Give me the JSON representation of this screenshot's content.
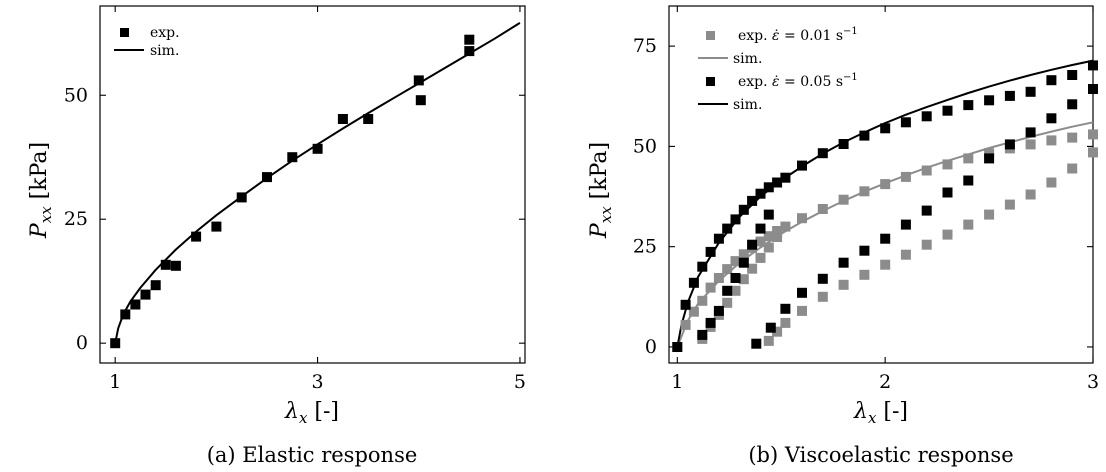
{
  "chart_data": [
    {
      "type": "scatter",
      "caption": "(a) Elastic response",
      "xlabel": "λx [-]",
      "ylabel": "Pxx [kPa]",
      "xlim": [
        0.85,
        5.05
      ],
      "ylim": [
        -4,
        68
      ],
      "xticks": [
        1,
        3,
        5
      ],
      "yticks": [
        0,
        25,
        50
      ],
      "grid": false,
      "legend_position": "top-left",
      "series": [
        {
          "name": "exp.",
          "kind": "markers",
          "color": "#000000",
          "x": [
            1.0,
            1.1,
            1.2,
            1.3,
            1.4,
            1.5,
            1.6,
            1.8,
            2.0,
            2.25,
            2.5,
            2.75,
            3.0,
            3.25,
            3.5,
            4.0,
            4.02,
            4.5,
            4.5
          ],
          "y": [
            0,
            5.8,
            7.8,
            9.8,
            11.7,
            15.8,
            15.6,
            21.5,
            23.5,
            29.4,
            33.5,
            37.5,
            39.2,
            45.2,
            45.2,
            53.0,
            49.0,
            58.9,
            61.2
          ]
        },
        {
          "name": "sim.",
          "kind": "line",
          "color": "#000000",
          "x": [
            1.0,
            1.03,
            1.08,
            1.15,
            1.25,
            1.4,
            1.6,
            1.8,
            2.0,
            2.25,
            2.5,
            2.75,
            3.0,
            3.25,
            3.5,
            3.75,
            4.0,
            4.25,
            4.5,
            4.75,
            5.0
          ],
          "y": [
            0,
            3.0,
            5.8,
            8.4,
            11.2,
            14.8,
            18.9,
            22.5,
            25.8,
            29.6,
            33.3,
            36.8,
            40.1,
            43.3,
            46.4,
            49.4,
            52.4,
            55.4,
            58.4,
            61.4,
            64.6
          ]
        }
      ]
    },
    {
      "type": "scatter",
      "caption": "(b) Viscoelastic response",
      "xlabel": "λx [-]",
      "ylabel": "Pxx [kPa]",
      "xlim": [
        0.96,
        3.0
      ],
      "ylim": [
        -4,
        85
      ],
      "xticks": [
        1,
        2,
        3
      ],
      "yticks": [
        0,
        25,
        50,
        75
      ],
      "grid": false,
      "legend_position": "top-left",
      "series": [
        {
          "name": "exp. ε̇ = 0.01 s⁻¹",
          "kind": "markers",
          "color": "#8c8c8c",
          "x": [
            1.0,
            1.04,
            1.08,
            1.12,
            1.16,
            1.2,
            1.24,
            1.28,
            1.32,
            1.36,
            1.4,
            1.44,
            1.48,
            1.52,
            1.6,
            1.7,
            1.8,
            1.9,
            2.0,
            2.1,
            2.2,
            2.3,
            2.4,
            2.5,
            2.6,
            2.7,
            2.8,
            2.9,
            3.0,
            1.12,
            1.16,
            1.2,
            1.24,
            1.28,
            1.32,
            1.36,
            1.4,
            1.44,
            1.48,
            1.44,
            1.48,
            1.52,
            1.6,
            1.7,
            1.8,
            1.9,
            2.0,
            2.1,
            2.2,
            2.3,
            2.4,
            2.5,
            2.6,
            2.7,
            2.8,
            2.9,
            3.0
          ],
          "y": [
            0,
            5.5,
            8.8,
            11.5,
            14.8,
            17.2,
            19.4,
            21.4,
            23.1,
            24.7,
            26.3,
            27.6,
            28.9,
            30.0,
            32.1,
            34.4,
            36.7,
            38.8,
            40.6,
            42.4,
            44.0,
            45.5,
            47.0,
            48.3,
            49.5,
            50.5,
            51.5,
            52.2,
            53.0,
            2.0,
            5.0,
            8.0,
            11.0,
            14.0,
            16.9,
            19.5,
            22.2,
            24.8,
            27.4,
            1.5,
            3.8,
            6.0,
            9.0,
            12.5,
            15.5,
            18.0,
            20.5,
            23.0,
            25.5,
            28.0,
            30.5,
            33.0,
            35.5,
            38.0,
            41.0,
            44.5,
            48.5
          ],
          "note_y_last": [
            0
          ]
        },
        {
          "name": "sim.",
          "kind": "line",
          "color": "#8c8c8c",
          "x": [
            1.0,
            1.05,
            1.1,
            1.2,
            1.3,
            1.4,
            1.5,
            1.6,
            1.7,
            1.8,
            1.9,
            2.0,
            2.1,
            2.2,
            2.3,
            2.4,
            2.5,
            2.6,
            2.7,
            2.8,
            2.9,
            3.0
          ],
          "y": [
            0,
            6.5,
            10.8,
            16.5,
            21.0,
            24.8,
            28.2,
            31.2,
            33.9,
            36.4,
            38.7,
            40.8,
            42.8,
            44.7,
            46.4,
            48.0,
            49.6,
            51.0,
            52.4,
            53.7,
            54.9,
            56.0
          ]
        },
        {
          "name": "exp. ε̇ = 0.05 s⁻¹",
          "kind": "markers",
          "color": "#000000",
          "x": [
            1.0,
            1.04,
            1.08,
            1.12,
            1.16,
            1.2,
            1.24,
            1.28,
            1.32,
            1.36,
            1.4,
            1.44,
            1.48,
            1.52,
            1.6,
            1.7,
            1.8,
            1.9,
            2.0,
            2.1,
            2.2,
            2.3,
            2.4,
            2.5,
            2.6,
            2.7,
            2.8,
            2.9,
            3.0,
            1.12,
            1.16,
            1.2,
            1.24,
            1.28,
            1.32,
            1.36,
            1.4,
            1.44,
            1.38,
            1.45,
            1.52,
            1.6,
            1.7,
            1.8,
            1.9,
            2.0,
            2.1,
            2.2,
            2.3,
            2.4,
            2.5,
            2.6,
            2.7,
            2.8,
            2.9,
            3.0
          ],
          "y": [
            0,
            10.5,
            16.0,
            20.0,
            23.7,
            27.0,
            29.5,
            31.8,
            34.2,
            36.4,
            38.2,
            39.8,
            41.0,
            42.2,
            45.2,
            48.3,
            50.6,
            52.7,
            54.5,
            56.0,
            57.5,
            58.9,
            60.3,
            61.5,
            62.6,
            63.6,
            66.5,
            67.8,
            70.2,
            3.0,
            6.0,
            9.0,
            14.0,
            17.2,
            21.0,
            25.5,
            29.5,
            33.0,
            0.8,
            4.8,
            9.5,
            13.5,
            17.0,
            21.0,
            24.0,
            27.0,
            30.5,
            34.0,
            38.5,
            41.5,
            47.0,
            50.5,
            53.5,
            57.0,
            60.5,
            64.3
          ],
          "note": ""
        },
        {
          "name": "sim.",
          "kind": "line",
          "color": "#000000",
          "x": [
            1.0,
            1.02,
            1.05,
            1.1,
            1.2,
            1.3,
            1.4,
            1.5,
            1.6,
            1.7,
            1.8,
            1.9,
            2.0,
            2.1,
            2.2,
            2.3,
            2.4,
            2.5,
            2.6,
            2.7,
            2.8,
            2.9,
            3.0
          ],
          "y": [
            0,
            5.5,
            11.0,
            17.5,
            26.0,
            32.5,
            37.5,
            41.5,
            45.0,
            48.2,
            51.0,
            53.5,
            55.8,
            57.9,
            59.8,
            61.6,
            63.3,
            64.9,
            66.4,
            67.8,
            69.1,
            70.3,
            71.4
          ]
        }
      ]
    }
  ]
}
